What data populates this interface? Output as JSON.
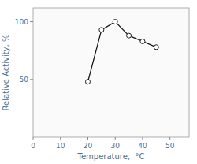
{
  "chart_data": {
    "type": "line",
    "x": [
      20,
      25,
      30,
      35,
      40,
      45
    ],
    "values": [
      48,
      93,
      100,
      88,
      83,
      78
    ],
    "xlim": [
      0,
      57
    ],
    "ylim": [
      0,
      112
    ],
    "xticks": [
      0,
      10,
      20,
      30,
      40,
      50
    ],
    "yticks": [
      50,
      100
    ],
    "xlabel": "Temperature,  °C",
    "ylabel": "Relative Activity, %",
    "color": "#1a1a1a",
    "marker": "circle",
    "grid": false
  }
}
